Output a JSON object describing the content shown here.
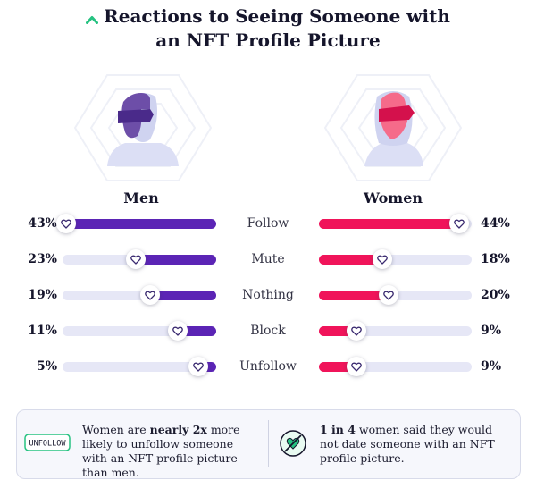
{
  "title_line1": "Reactions to Seeing Someone with",
  "title_line2": "an NFT Profile Picture",
  "icons": {
    "title": "chevron-up-icon",
    "men_avatar": "masked-man-avatar-icon",
    "women_avatar": "masked-woman-avatar-icon",
    "handle": "heart-icon",
    "note1": "unfollow-tag-icon",
    "note2": "no-heart-icon"
  },
  "colors": {
    "accent": "#26c281",
    "men": "#5b24b5",
    "women": "#f0145a",
    "track": "#e6e7f6",
    "men_avatar": "#6d4ea8",
    "women_avatar": "#f56b8a"
  },
  "chart_data": {
    "type": "bar",
    "categories": [
      "Follow",
      "Mute",
      "Nothing",
      "Block",
      "Unfollow"
    ],
    "series": [
      {
        "name": "Men",
        "values": [
          43,
          23,
          19,
          11,
          5
        ],
        "labels": [
          "43%",
          "23%",
          "19%",
          "11%",
          "5%"
        ]
      },
      {
        "name": "Women",
        "values": [
          44,
          18,
          20,
          9,
          9
        ],
        "labels": [
          "44%",
          "18%",
          "20%",
          "9%",
          "9%"
        ]
      }
    ],
    "unit": "%"
  },
  "notes": {
    "note1": {
      "icon_text": "UNFOLLOW",
      "pre": "Women are ",
      "bold": "nearly 2x",
      "post": " more likely to unfollow someone with an NFT profile picture than men."
    },
    "note2": {
      "bold": "1 in 4",
      "post": " women said they would not date someone with an NFT profile picture."
    }
  }
}
